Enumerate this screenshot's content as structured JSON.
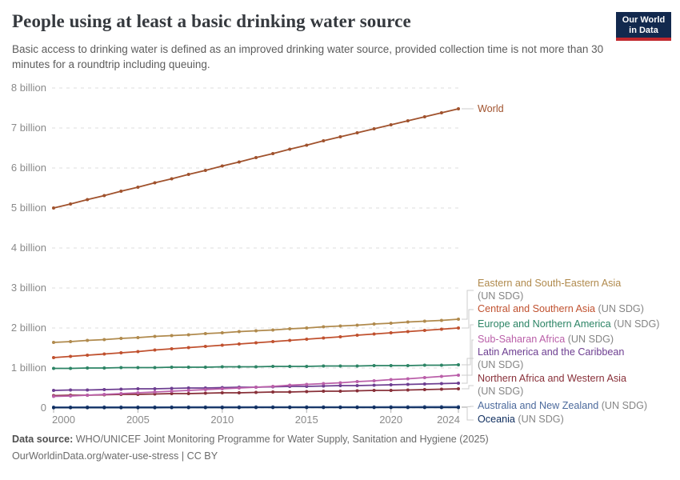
{
  "header": {
    "title": "People using at least a basic drinking water source",
    "subtitle": "Basic access to drinking water is defined as an improved drinking water source, provided collection time is not more than 30 minutes for a roundtrip including queuing."
  },
  "logo": {
    "line1": "Our World",
    "line2": "in Data",
    "bg_color": "#12294E",
    "stripe_color": "#C1272D"
  },
  "footer": {
    "source_label": "Data source:",
    "source_text": " WHO/UNICEF Joint Monitoring Programme for Water Supply, Sanitation and Hygiene (2025)",
    "license_line": "OurWorldinData.org/water-use-stress | CC BY"
  },
  "chart_data": {
    "type": "line",
    "title": "People using at least a basic drinking water source",
    "xlabel": "",
    "ylabel": "",
    "x": [
      2000,
      2001,
      2002,
      2003,
      2004,
      2005,
      2006,
      2007,
      2008,
      2009,
      2010,
      2011,
      2012,
      2013,
      2014,
      2015,
      2016,
      2017,
      2018,
      2019,
      2020,
      2021,
      2022,
      2023,
      2024
    ],
    "x_tick_labels": [
      "2000",
      "2005",
      "2010",
      "2015",
      "2020",
      "2024"
    ],
    "x_tick_years": [
      2000,
      2005,
      2010,
      2015,
      2020,
      2024
    ],
    "y_tick_labels": [
      "0",
      "1 billion",
      "2 billion",
      "3 billion",
      "4 billion",
      "5 billion",
      "6 billion",
      "7 billion",
      "8 billion"
    ],
    "ylim_billions": [
      0,
      8
    ],
    "grid": "dashed-horizontal",
    "legend_position": "right-of-lines",
    "unit": "people (billions)",
    "series": [
      {
        "name": "World",
        "suffix": "",
        "two_line": false,
        "color": "#A0522D",
        "slug": "world",
        "values": [
          5.0,
          5.1,
          5.21,
          5.31,
          5.42,
          5.52,
          5.63,
          5.73,
          5.84,
          5.94,
          6.05,
          6.15,
          6.26,
          6.36,
          6.47,
          6.57,
          6.68,
          6.78,
          6.88,
          6.98,
          7.08,
          7.18,
          7.28,
          7.38,
          7.48
        ]
      },
      {
        "name": "Eastern and South-Eastern Asia",
        "suffix": "(UN SDG)",
        "two_line": true,
        "color": "#B08A4D",
        "slug": "eastern-south-eastern-asia",
        "values": [
          1.64,
          1.66,
          1.69,
          1.71,
          1.74,
          1.76,
          1.79,
          1.81,
          1.83,
          1.86,
          1.88,
          1.91,
          1.93,
          1.95,
          1.98,
          2.0,
          2.03,
          2.05,
          2.07,
          2.1,
          2.12,
          2.15,
          2.17,
          2.19,
          2.22
        ]
      },
      {
        "name": "Central and Southern Asia",
        "suffix": "(UN SDG)",
        "two_line": false,
        "color": "#C0512F",
        "slug": "central-southern-asia",
        "values": [
          1.26,
          1.29,
          1.32,
          1.35,
          1.38,
          1.41,
          1.45,
          1.48,
          1.51,
          1.54,
          1.57,
          1.6,
          1.63,
          1.66,
          1.69,
          1.72,
          1.75,
          1.78,
          1.82,
          1.85,
          1.88,
          1.91,
          1.94,
          1.97,
          2.0
        ]
      },
      {
        "name": "Europe and Northern America",
        "suffix": "(UN SDG)",
        "two_line": false,
        "color": "#2C8465",
        "slug": "europe-northern-america",
        "values": [
          0.99,
          0.99,
          1.0,
          1.0,
          1.01,
          1.01,
          1.01,
          1.02,
          1.02,
          1.02,
          1.03,
          1.03,
          1.03,
          1.04,
          1.04,
          1.04,
          1.05,
          1.05,
          1.05,
          1.06,
          1.06,
          1.06,
          1.07,
          1.07,
          1.08
        ]
      },
      {
        "name": "Sub-Saharan Africa",
        "suffix": "(UN SDG)",
        "two_line": false,
        "color": "#BA5FA9",
        "slug": "sub-saharan-africa",
        "values": [
          0.29,
          0.3,
          0.32,
          0.34,
          0.36,
          0.38,
          0.4,
          0.42,
          0.44,
          0.46,
          0.48,
          0.5,
          0.52,
          0.54,
          0.57,
          0.59,
          0.61,
          0.63,
          0.66,
          0.68,
          0.71,
          0.73,
          0.76,
          0.79,
          0.82
        ]
      },
      {
        "name": "Latin America and the Caribbean",
        "suffix": "(UN SDG)",
        "two_line": true,
        "color": "#6D3E91",
        "slug": "latin-america-caribbean",
        "values": [
          0.44,
          0.45,
          0.45,
          0.46,
          0.47,
          0.48,
          0.48,
          0.49,
          0.5,
          0.5,
          0.51,
          0.52,
          0.52,
          0.53,
          0.54,
          0.54,
          0.55,
          0.56,
          0.56,
          0.57,
          0.58,
          0.59,
          0.6,
          0.61,
          0.62
        ]
      },
      {
        "name": "Northern Africa and Western Asia",
        "suffix": "(UN SDG)",
        "two_line": true,
        "color": "#883039",
        "slug": "northern-africa-western-asia",
        "values": [
          0.31,
          0.32,
          0.32,
          0.33,
          0.34,
          0.34,
          0.35,
          0.36,
          0.36,
          0.37,
          0.38,
          0.38,
          0.39,
          0.4,
          0.4,
          0.41,
          0.42,
          0.42,
          0.43,
          0.44,
          0.44,
          0.45,
          0.46,
          0.47,
          0.48
        ]
      },
      {
        "name": "Australia and New Zealand",
        "suffix": "(UN SDG)",
        "two_line": false,
        "color": "#4C6A9C",
        "slug": "australia-new-zealand",
        "values": [
          0.023,
          0.023,
          0.024,
          0.024,
          0.024,
          0.025,
          0.025,
          0.025,
          0.026,
          0.026,
          0.026,
          0.027,
          0.027,
          0.027,
          0.028,
          0.028,
          0.028,
          0.029,
          0.029,
          0.029,
          0.03,
          0.03,
          0.031,
          0.031,
          0.032
        ]
      },
      {
        "name": "Oceania",
        "suffix": "(UN SDG)",
        "two_line": false,
        "color": "#0E2D5E",
        "slug": "oceania",
        "values": [
          0.008,
          0.008,
          0.008,
          0.009,
          0.009,
          0.009,
          0.009,
          0.01,
          0.01,
          0.01,
          0.01,
          0.01,
          0.011,
          0.011,
          0.011,
          0.011,
          0.011,
          0.012,
          0.012,
          0.012,
          0.012,
          0.012,
          0.013,
          0.013,
          0.013
        ]
      }
    ]
  }
}
